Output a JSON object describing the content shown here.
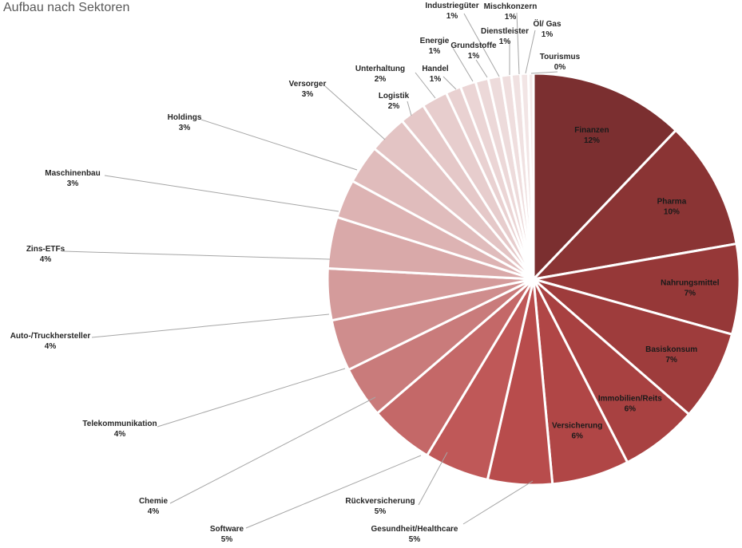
{
  "chart_data": {
    "type": "pie",
    "title": "Aufbau nach Sektoren",
    "slices": [
      {
        "label": "Finanzen",
        "percent_label": "12%",
        "value": 12,
        "color": "#7b2f30"
      },
      {
        "label": "Pharma",
        "percent_label": "10%",
        "value": 10,
        "color": "#8a3434"
      },
      {
        "label": "Nahrungsmittel",
        "percent_label": "7%",
        "value": 7,
        "color": "#963838"
      },
      {
        "label": "Basiskonsum",
        "percent_label": "7%",
        "value": 7,
        "color": "#9e3c3c"
      },
      {
        "label": "Immobilien/Reits",
        "percent_label": "6%",
        "value": 6,
        "color": "#a84141"
      },
      {
        "label": "Versicherung",
        "percent_label": "6%",
        "value": 6,
        "color": "#b04646"
      },
      {
        "label": "Gesundheit/Healthcare",
        "percent_label": "5%",
        "value": 5,
        "color": "#b84c4c"
      },
      {
        "label": "Rückversicherung",
        "percent_label": "5%",
        "value": 5,
        "color": "#bf5858"
      },
      {
        "label": "Software",
        "percent_label": "5%",
        "value": 5,
        "color": "#c46868"
      },
      {
        "label": "Chemie",
        "percent_label": "4%",
        "value": 4,
        "color": "#c97b7b"
      },
      {
        "label": "Telekommunikation",
        "percent_label": "4%",
        "value": 4,
        "color": "#cf8d8d"
      },
      {
        "label": "Auto-/Truckhersteller",
        "percent_label": "4%",
        "value": 4,
        "color": "#d49b9b"
      },
      {
        "label": "Zins-ETFs",
        "percent_label": "4%",
        "value": 4,
        "color": "#d9a9a9"
      },
      {
        "label": "Maschinenbau",
        "percent_label": "3%",
        "value": 3,
        "color": "#ddb3b3"
      },
      {
        "label": "Holdings",
        "percent_label": "3%",
        "value": 3,
        "color": "#e0bcbc"
      },
      {
        "label": "Versorger",
        "percent_label": "3%",
        "value": 3,
        "color": "#e3c4c4"
      },
      {
        "label": "Logistik",
        "percent_label": "2%",
        "value": 2,
        "color": "#e5c8c8"
      },
      {
        "label": "Unterhaltung",
        "percent_label": "2%",
        "value": 2,
        "color": "#e7cdcd"
      },
      {
        "label": "Handel",
        "percent_label": "1%",
        "value": 1.2,
        "color": "#e9d1d1"
      },
      {
        "label": "Energie",
        "percent_label": "1%",
        "value": 1.2,
        "color": "#ebd5d5"
      },
      {
        "label": "Grundstoffe",
        "percent_label": "1%",
        "value": 1,
        "color": "#ecd8d8"
      },
      {
        "label": "Industriegüter",
        "percent_label": "1%",
        "value": 1,
        "color": "#eddbdb"
      },
      {
        "label": "Dienstleister",
        "percent_label": "1%",
        "value": 0.8,
        "color": "#efdede"
      },
      {
        "label": "Mischkonzern",
        "percent_label": "1%",
        "value": 0.7,
        "color": "#f0e1e1"
      },
      {
        "label": "Öl/ Gas",
        "percent_label": "1%",
        "value": 0.6,
        "color": "#f2e5e5"
      },
      {
        "label": "Tourismus",
        "percent_label": "0%",
        "value": 0.4,
        "color": "#f4e9e9"
      }
    ]
  }
}
